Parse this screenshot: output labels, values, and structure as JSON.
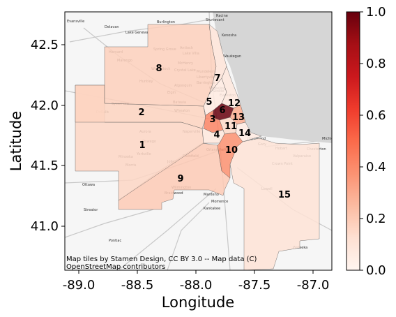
{
  "map": {
    "xlabel": "Longitude",
    "ylabel": "Latitude",
    "xlim": [
      -89.12,
      -86.83
    ],
    "ylim": [
      40.63,
      42.78
    ],
    "xticks": [
      "-89.0",
      "-88.5",
      "-88.0",
      "-87.5",
      "-87.0"
    ],
    "yticks": [
      "41.0",
      "41.5",
      "42.0",
      "42.5"
    ],
    "attribution_line1": "Map tiles by Stamen Design, CC BY 3.0 -- Map data (C)",
    "attribution_line2": "OpenStreetMap contributors",
    "basemap_style": "light toner",
    "lake_color": "#d6d6d6",
    "colormap": "Reds",
    "colorbar_ticks": [
      "0.0",
      "0.2",
      "0.4",
      "0.6",
      "0.8",
      "1.0"
    ],
    "colorbar_range": [
      0.0,
      1.0
    ],
    "basemap_places": [
      "Evansville",
      "Delavan",
      "Lake Geneva",
      "Burlington",
      "Racine",
      "Sturtevant",
      "Kenosha",
      "Harvard",
      "Spring Grove",
      "Antioch",
      "Marengo",
      "McHenry",
      "Lake Villa",
      "Waukegan",
      "Woodstock",
      "Crystal Lake",
      "Mundelein",
      "Libertyville",
      "Huntley",
      "Algonquin",
      "Elgin",
      "Barrington",
      "Wheeling",
      "Sycamore",
      "DeKalb",
      "Aurora",
      "Naperville",
      "Plainfield",
      "Joliet",
      "Orland Park",
      "Kankakee",
      "Ottawa",
      "Streator",
      "Pontiac",
      "Wilmington",
      "Braidwood",
      "Gary",
      "Hobart",
      "Valparaiso",
      "Michigan City",
      "Chesterton",
      "Crown Point",
      "Lowell",
      "Watseka",
      "Momence",
      "Manteno",
      "Hammond",
      "Morris",
      "Minooka",
      "Batavia",
      "Oswego",
      "Yorkville",
      "Wheaton",
      "Evanston",
      "Skokie"
    ]
  },
  "regions": [
    {
      "id": "1",
      "value": 0.16
    },
    {
      "id": "2",
      "value": 0.17
    },
    {
      "id": "3",
      "value": 0.42
    },
    {
      "id": "4",
      "value": 0.08
    },
    {
      "id": "5",
      "value": 0.06
    },
    {
      "id": "6",
      "value": 1.0
    },
    {
      "id": "7",
      "value": 0.1
    },
    {
      "id": "8",
      "value": 0.18
    },
    {
      "id": "9",
      "value": 0.2
    },
    {
      "id": "10",
      "value": 0.38
    },
    {
      "id": "11",
      "value": 0.15
    },
    {
      "id": "12",
      "value": 0.08
    },
    {
      "id": "13",
      "value": 0.3
    },
    {
      "id": "14",
      "value": 0.06
    },
    {
      "id": "15",
      "value": 0.11
    }
  ]
}
